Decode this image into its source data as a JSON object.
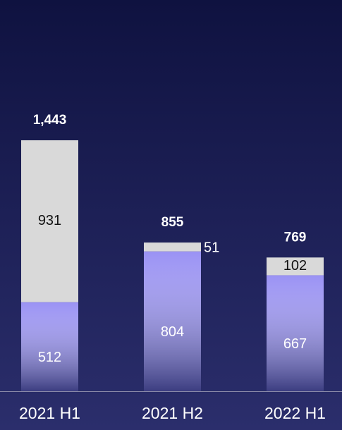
{
  "chart_data": {
    "type": "stacked_bar",
    "categories": [
      "2021 H1",
      "2021 H2",
      "2022 H1"
    ],
    "series": [
      {
        "color": "#9a92f4",
        "values": [
          512,
          804,
          667
        ]
      },
      {
        "color": "#d9d9d9",
        "values": [
          931,
          51,
          102
        ]
      }
    ],
    "total_labels": [
      "1,443",
      "855",
      "769"
    ]
  }
}
